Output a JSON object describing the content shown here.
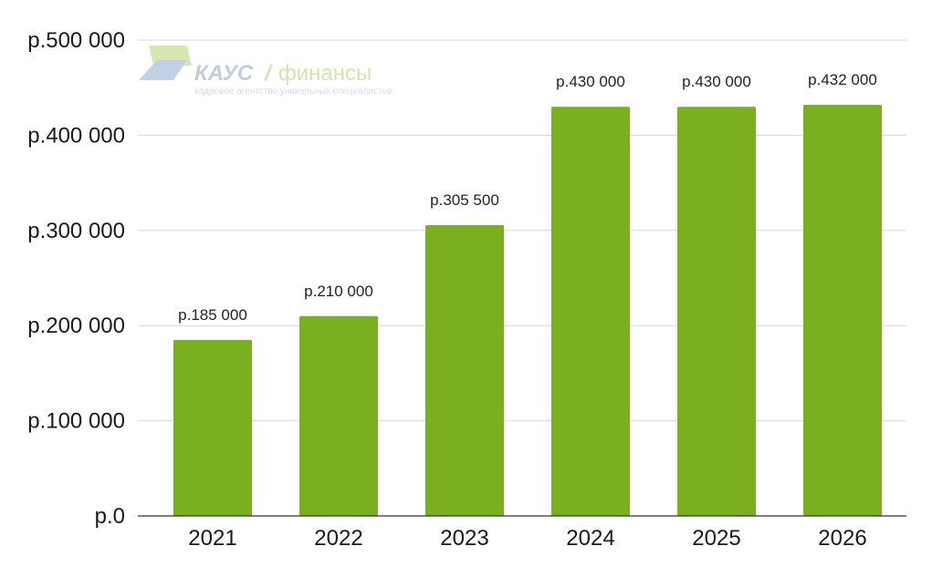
{
  "colors": {
    "bar": "#7aaf1f",
    "watermark_blue": "#b9c8dc",
    "watermark_green": "#cfe3a6"
  },
  "watermark": {
    "brand": "КАУС",
    "product": "финансы",
    "tagline": "кадровое агентство уникальных специалистов"
  },
  "chart_data": {
    "type": "bar",
    "categories": [
      "2021",
      "2022",
      "2023",
      "2024",
      "2025",
      "2026"
    ],
    "values": [
      185000,
      210000,
      305500,
      430000,
      430000,
      432000
    ],
    "data_labels": [
      "р.185 000",
      "р.210 000",
      "р.305 500",
      "р.430 000",
      "р.430 000",
      "р.432 000"
    ],
    "y_ticks": [
      0,
      100000,
      200000,
      300000,
      400000,
      500000
    ],
    "y_tick_labels": [
      "р.0",
      "р.100 000",
      "р.200 000",
      "р.300 000",
      "р.400 000",
      "р.500 000"
    ],
    "ylim": [
      0,
      500000
    ],
    "grid": true,
    "legend": "none"
  }
}
